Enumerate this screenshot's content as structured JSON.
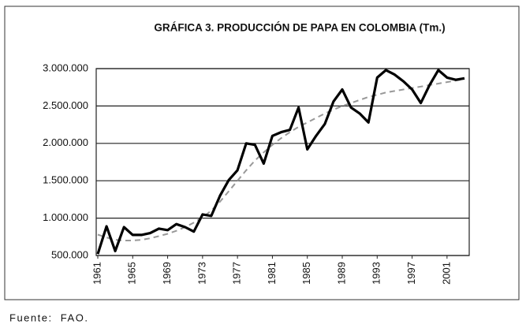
{
  "chart_data": {
    "type": "line",
    "title": "GRÁFICA 3. PRODUCCIÓN DE PAPA EN COLOMBIA (Tm.)",
    "x": [
      1961,
      1962,
      1963,
      1964,
      1965,
      1966,
      1967,
      1968,
      1969,
      1970,
      1971,
      1972,
      1973,
      1974,
      1975,
      1976,
      1977,
      1978,
      1979,
      1980,
      1981,
      1982,
      1983,
      1984,
      1985,
      1986,
      1987,
      1988,
      1989,
      1990,
      1991,
      1992,
      1993,
      1994,
      1995,
      1996,
      1997,
      1998,
      1999,
      2000,
      2001,
      2002,
      2003
    ],
    "series": [
      {
        "color": "#000000",
        "width": 3.2,
        "dashed": false,
        "values": [
          520000,
          890000,
          560000,
          880000,
          775000,
          775000,
          800000,
          860000,
          840000,
          920000,
          880000,
          820000,
          1050000,
          1030000,
          1300000,
          1510000,
          1640000,
          2000000,
          1980000,
          1730000,
          2100000,
          2150000,
          2180000,
          2480000,
          1920000,
          2100000,
          2260000,
          2560000,
          2720000,
          2480000,
          2400000,
          2280000,
          2880000,
          2980000,
          2920000,
          2830000,
          2720000,
          2540000,
          2780000,
          2980000,
          2880000,
          2850000,
          2870000
        ]
      },
      {
        "color": "#999999",
        "width": 2,
        "dashed": true,
        "values": [
          780000,
          740000,
          710000,
          700000,
          700000,
          710000,
          730000,
          760000,
          790000,
          830000,
          880000,
          940000,
          1010000,
          1100000,
          1220000,
          1360000,
          1500000,
          1640000,
          1770000,
          1880000,
          1980000,
          2070000,
          2150000,
          2220000,
          2280000,
          2340000,
          2400000,
          2450000,
          2500000,
          2540000,
          2580000,
          2620000,
          2650000,
          2680000,
          2700000,
          2720000,
          2740000,
          2760000,
          2780000,
          2800000,
          2820000,
          2840000,
          2860000
        ]
      }
    ],
    "xlim": [
      1961,
      2003
    ],
    "xticks": [
      1961,
      1965,
      1969,
      1973,
      1977,
      1981,
      1985,
      1989,
      1993,
      1997,
      2001
    ],
    "ylim": [
      500000,
      3000000
    ],
    "yticks": [
      {
        "value": 500000,
        "label": "500.000"
      },
      {
        "value": 1000000,
        "label": "1.000.000"
      },
      {
        "value": 1500000,
        "label": "1.500.000"
      },
      {
        "value": 2000000,
        "label": "2.000.000"
      },
      {
        "value": 2500000,
        "label": "2.500.000"
      },
      {
        "value": 3000000,
        "label": "3.000.000"
      }
    ],
    "grid": true,
    "source": "Fuente:  FAO."
  }
}
